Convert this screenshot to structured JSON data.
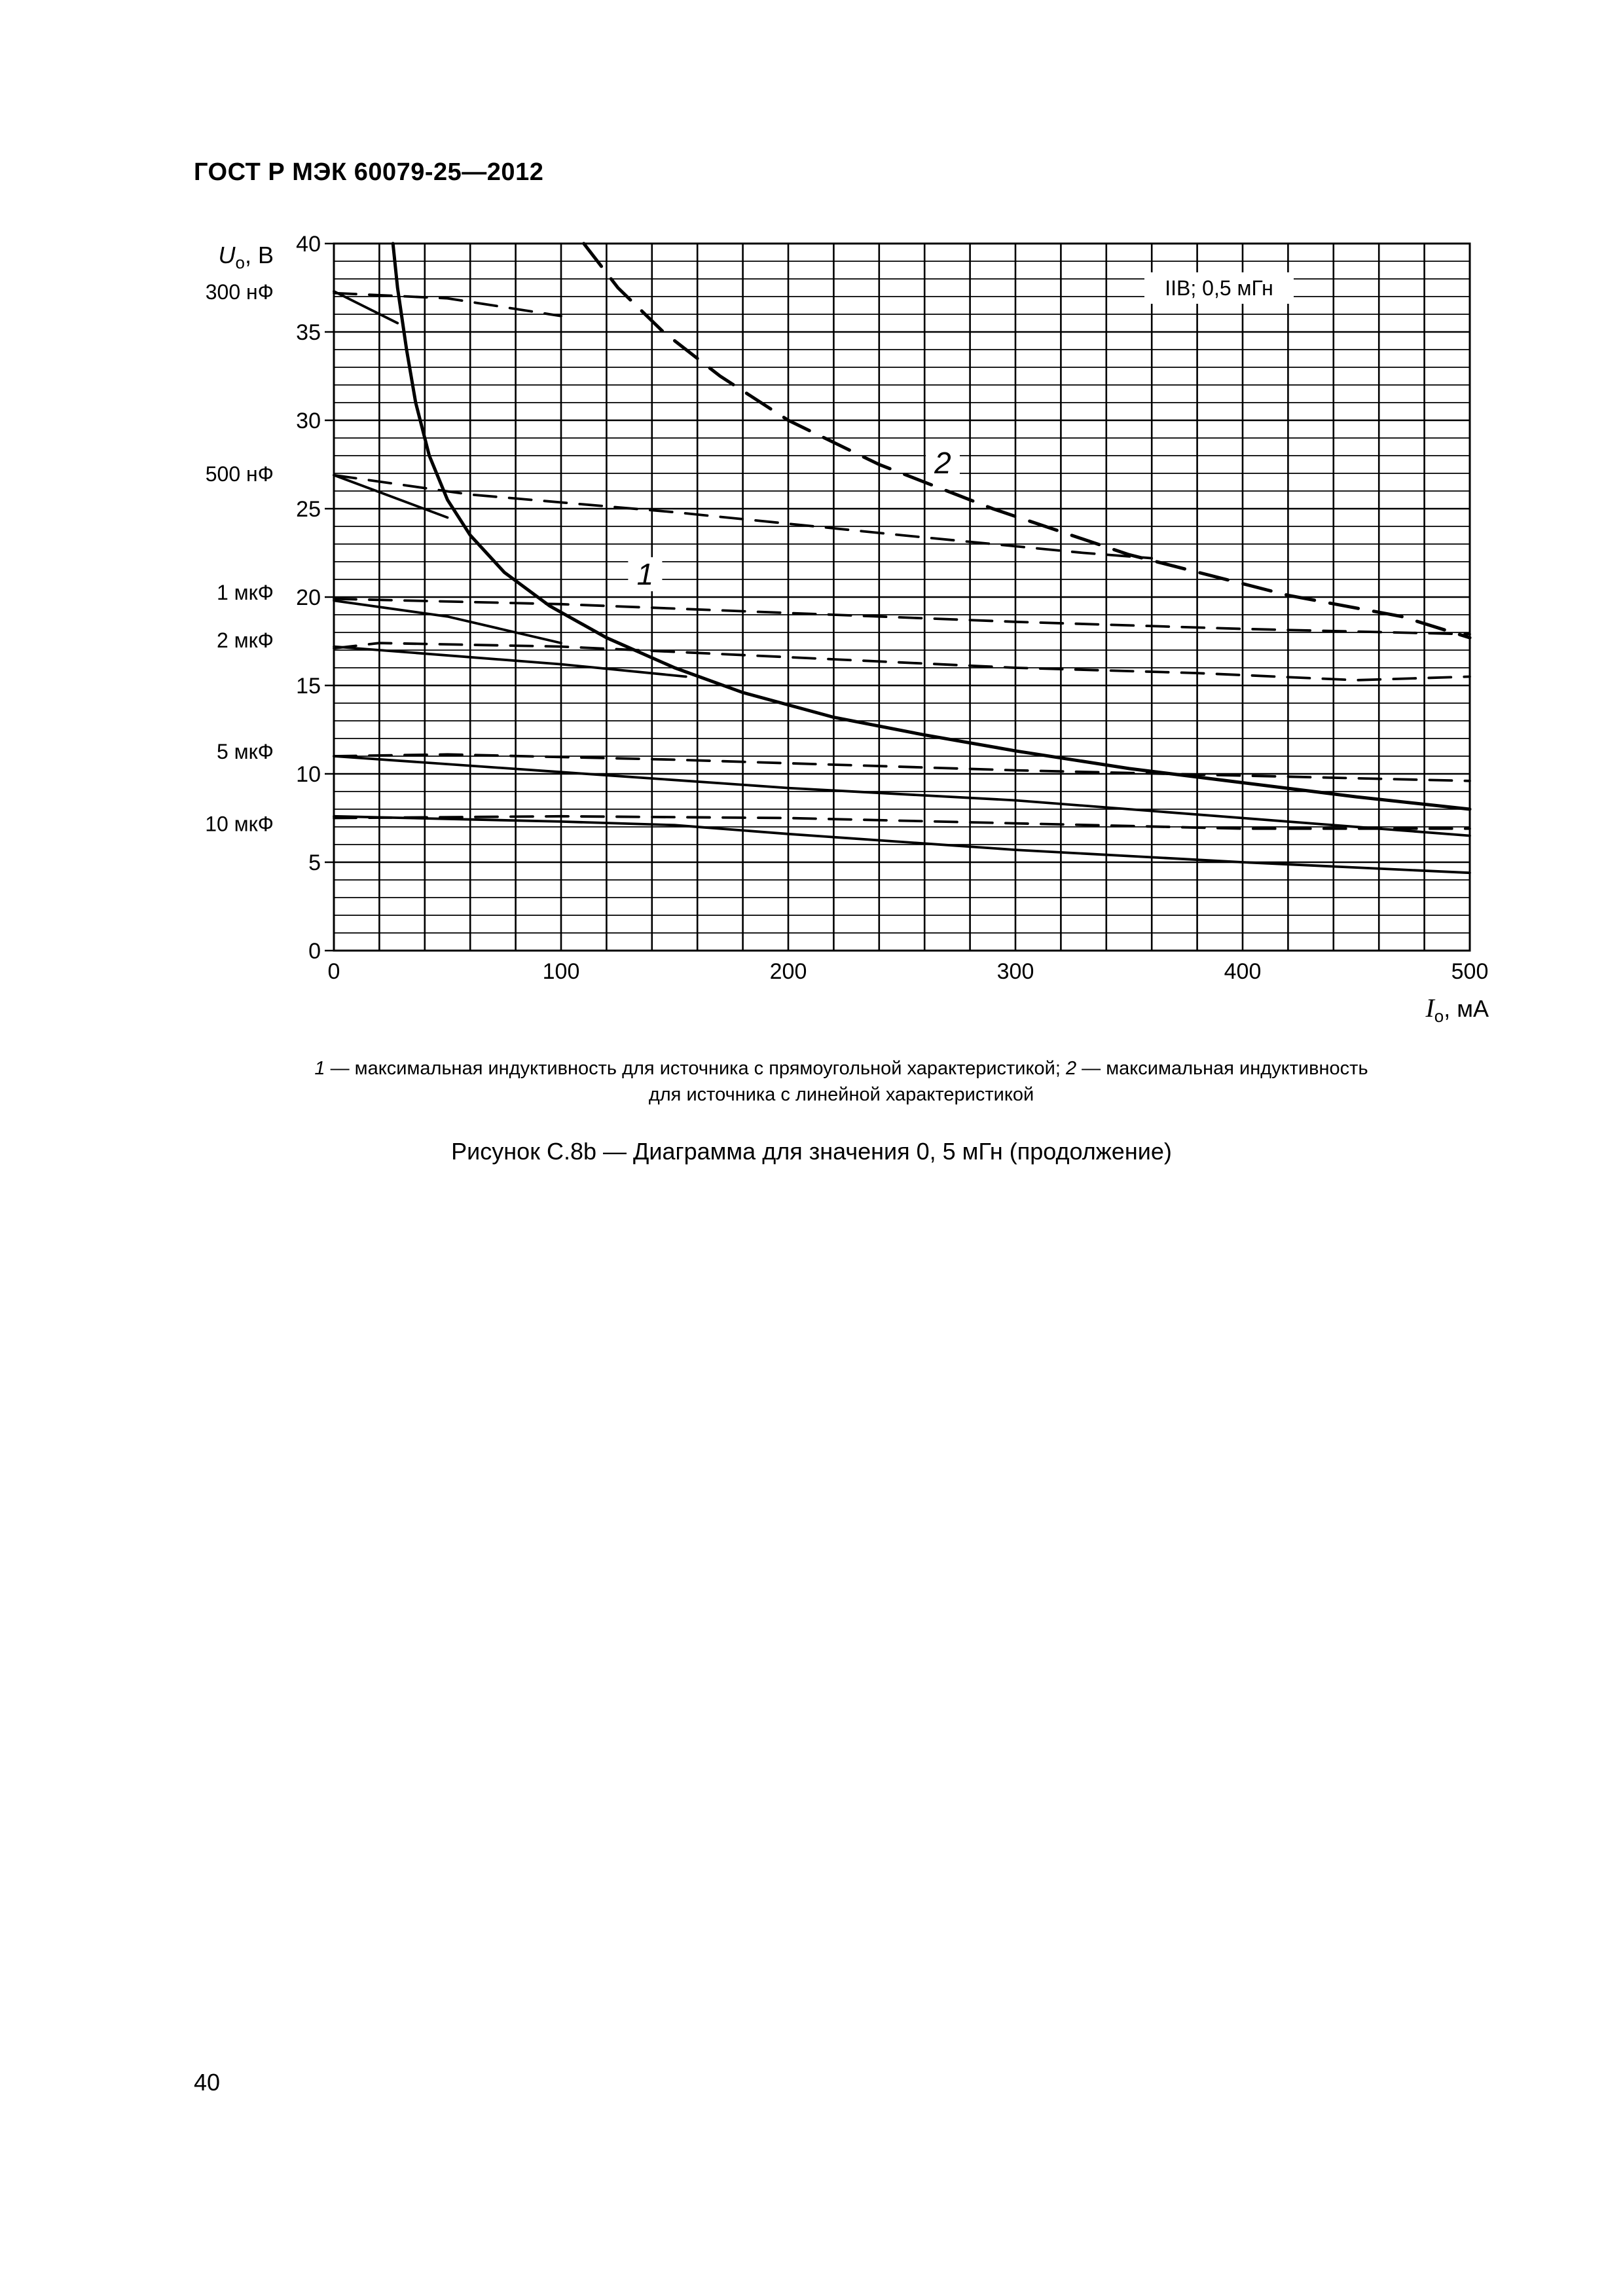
{
  "header": {
    "title": "ГОСТ Р МЭК 60079-25—2012"
  },
  "chart_data": {
    "type": "line",
    "y_axis": {
      "symbol": "U",
      "subscript": "o",
      "unit": ", В",
      "range": [
        0,
        40
      ],
      "ticks": [
        0,
        5,
        10,
        15,
        20,
        25,
        30,
        35,
        40
      ]
    },
    "x_axis": {
      "symbol": "I",
      "subscript": "o",
      "unit": ", мА",
      "range": [
        0,
        500
      ],
      "ticks": [
        0,
        100,
        200,
        300,
        400,
        500
      ]
    },
    "grid": true,
    "box_label": "IIB; 0,5 мГн",
    "curve_labels": [
      "1",
      "2"
    ],
    "capacitance_labels": [
      {
        "text": "300 нФ",
        "value": 37.3
      },
      {
        "text": "500 нФ",
        "value": 27.0
      },
      {
        "text": "1 мкФ",
        "value": 20.3
      },
      {
        "text": "2 мкФ",
        "value": 17.6
      },
      {
        "text": "5 мкФ",
        "value": 11.3
      },
      {
        "text": "10 мкФ",
        "value": 7.2
      }
    ],
    "series": [
      {
        "style": "solid-thick",
        "points": [
          [
            26,
            40
          ],
          [
            28,
            37.5
          ],
          [
            32,
            34
          ],
          [
            36,
            31
          ],
          [
            42,
            28
          ],
          [
            50,
            25.5
          ],
          [
            60,
            23.5
          ],
          [
            75,
            21.4
          ],
          [
            95,
            19.5
          ],
          [
            120,
            17.7
          ],
          [
            150,
            16
          ],
          [
            180,
            14.6
          ],
          [
            220,
            13.2
          ],
          [
            260,
            12.2
          ],
          [
            300,
            11.3
          ],
          [
            350,
            10.3
          ],
          [
            400,
            9.5
          ],
          [
            450,
            8.7
          ],
          [
            500,
            8
          ]
        ]
      },
      {
        "style": "dash-long",
        "points": [
          [
            110,
            40
          ],
          [
            125,
            37.5
          ],
          [
            145,
            35
          ],
          [
            170,
            32.5
          ],
          [
            200,
            30
          ],
          [
            240,
            27.5
          ],
          [
            290,
            25
          ],
          [
            350,
            22.4
          ],
          [
            420,
            20.1
          ],
          [
            470,
            18.9
          ],
          [
            500,
            17.7
          ]
        ]
      },
      {
        "style": "solid",
        "points": [
          [
            0,
            37.3
          ],
          [
            28,
            35.5
          ]
        ]
      },
      {
        "style": "dash",
        "points": [
          [
            0,
            37.2
          ],
          [
            50,
            36.9
          ],
          [
            100,
            35.9
          ]
        ]
      },
      {
        "style": "solid",
        "points": [
          [
            0,
            26.9
          ],
          [
            50,
            24.5
          ]
        ]
      },
      {
        "style": "dash",
        "points": [
          [
            0,
            26.9
          ],
          [
            60,
            25.8
          ],
          [
            150,
            24.8
          ],
          [
            250,
            23.5
          ],
          [
            330,
            22.5
          ],
          [
            360,
            22.2
          ]
        ]
      },
      {
        "style": "dash",
        "points": [
          [
            0,
            19.9
          ],
          [
            100,
            19.6
          ],
          [
            200,
            19.1
          ],
          [
            300,
            18.6
          ],
          [
            400,
            18.2
          ],
          [
            500,
            17.9
          ]
        ]
      },
      {
        "style": "solid",
        "points": [
          [
            0,
            19.8
          ],
          [
            50,
            18.9
          ],
          [
            100,
            17.4
          ]
        ]
      },
      {
        "style": "dash",
        "points": [
          [
            0,
            17.1
          ],
          [
            20,
            17.4
          ],
          [
            100,
            17.2
          ],
          [
            200,
            16.6
          ],
          [
            300,
            16
          ],
          [
            380,
            15.7
          ],
          [
            450,
            15.3
          ],
          [
            500,
            15.5
          ]
        ]
      },
      {
        "style": "solid",
        "points": [
          [
            0,
            17.2
          ],
          [
            100,
            16.2
          ],
          [
            155,
            15.5
          ]
        ]
      },
      {
        "style": "dash",
        "points": [
          [
            0,
            11
          ],
          [
            50,
            11.1
          ],
          [
            150,
            10.8
          ],
          [
            200,
            10.6
          ],
          [
            300,
            10.2
          ],
          [
            400,
            9.9
          ],
          [
            500,
            9.6
          ]
        ]
      },
      {
        "style": "solid",
        "points": [
          [
            0,
            11
          ],
          [
            100,
            10.1
          ],
          [
            200,
            9.2
          ],
          [
            300,
            8.5
          ],
          [
            400,
            7.5
          ],
          [
            500,
            6.5
          ]
        ]
      },
      {
        "style": "dash",
        "points": [
          [
            0,
            7.5
          ],
          [
            100,
            7.6
          ],
          [
            200,
            7.5
          ],
          [
            300,
            7.2
          ],
          [
            400,
            6.9
          ],
          [
            500,
            6.9
          ]
        ]
      },
      {
        "style": "solid",
        "points": [
          [
            0,
            7.6
          ],
          [
            100,
            7.3
          ],
          [
            150,
            7.1
          ],
          [
            200,
            6.6
          ],
          [
            300,
            5.7
          ],
          [
            400,
            5
          ],
          [
            500,
            4.4
          ]
        ]
      }
    ]
  },
  "legend": {
    "n1": "1",
    "t1": " — максимальная индуктивность для источника с прямоугольной характеристикой; ",
    "n2": "2",
    "t2": " — максимальная индуктивность",
    "t3": "для источника с линейной характеристикой"
  },
  "caption": "Рисунок С.8b — Диаграмма для значения 0, 5 мГн (продолжение)",
  "page_number": "40"
}
